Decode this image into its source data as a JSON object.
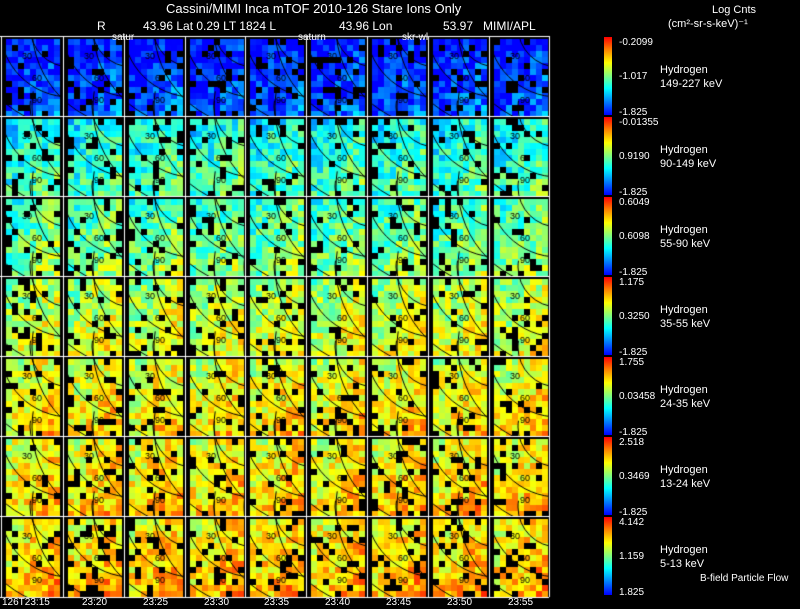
{
  "header": {
    "title_line": "Cassini/MIMI Inca mTOF  2010-126   Stare   Ions Only",
    "r_label": "R",
    "lat_value": "43.96 Lat 0.29 LT 1824 L",
    "lon_value": "43.96 Lon",
    "lt_value": "53.97",
    "mission": "MIMI/APL",
    "overlay_labels": [
      "satur",
      "saturn",
      "skr-wl"
    ]
  },
  "units": {
    "title": "Log Cnts",
    "units_text": "(cm²-sr-s-keV)⁻¹"
  },
  "bands": [
    {
      "species": "Hydrogen",
      "energy": "149-227 keV",
      "max": "-0.2099",
      "mid": "-1.017",
      "min": "-1.825",
      "level": 0.08
    },
    {
      "species": "Hydrogen",
      "energy": "90-149 keV",
      "max": "-0.01355",
      "mid": "0.9190",
      "min": "-1.825",
      "level": 0.4
    },
    {
      "species": "Hydrogen",
      "energy": "55-90 keV",
      "max": "0.6049",
      "mid": "0.6098",
      "min": "-1.825",
      "level": 0.48
    },
    {
      "species": "Hydrogen",
      "energy": "35-55 keV",
      "max": "1.175",
      "mid": "0.3250",
      "min": "-1.825",
      "level": 0.6
    },
    {
      "species": "Hydrogen",
      "energy": "24-35 keV",
      "max": "1.755",
      "mid": "0.03458",
      "min": "-1.825",
      "level": 0.67
    },
    {
      "species": "Hydrogen",
      "energy": "13-24 keV",
      "max": "2.518",
      "mid": "0.3469",
      "min": "-1.825",
      "level": 0.7
    },
    {
      "species": "Hydrogen",
      "energy": "5-13 keV",
      "max": "4.142",
      "mid": "1.159",
      "min": "1.825",
      "level": 0.72
    }
  ],
  "times": [
    "126T23:15",
    "23:20",
    "23:25",
    "23:30",
    "23:35",
    "23:40",
    "23:45",
    "23:50",
    "23:55"
  ],
  "contour_labels": [
    "30",
    "60",
    "90"
  ],
  "footer_note": "B-field Particle Flow"
}
